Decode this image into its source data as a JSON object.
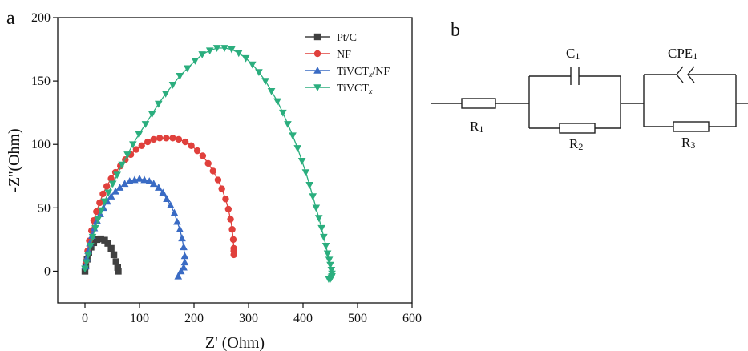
{
  "panels": {
    "a": {
      "label": "a"
    },
    "b": {
      "label": "b"
    }
  },
  "chart_data": {
    "type": "scatter",
    "title": "",
    "xlabel": "Z' (Ohm)",
    "ylabel": "-Z''(Ohm)",
    "xlim": [
      -50,
      600
    ],
    "ylim": [
      -25,
      200
    ],
    "xticks": [
      0,
      100,
      200,
      300,
      400,
      500,
      600
    ],
    "yticks": [
      0,
      50,
      100,
      150,
      200
    ],
    "xtick_labels": [
      "0",
      "100",
      "200",
      "300",
      "400",
      "500",
      "600"
    ],
    "ytick_labels": [
      "0",
      "50",
      "100",
      "150",
      "200"
    ],
    "grid": false,
    "legend_position": "top-right",
    "series": [
      {
        "name": "Pt/C",
        "name_sub": "",
        "name_suffix": "",
        "color": "#404040",
        "marker": "square",
        "x": [
          0.0,
          1.5,
          4.0,
          7.0,
          11.0,
          16.0,
          22.0,
          29.0,
          36.0,
          42.0,
          48.0,
          53.0,
          57.0,
          60.0,
          61.0
        ],
        "y": [
          0.0,
          4.0,
          9.5,
          14.5,
          19.0,
          22.5,
          25.0,
          25.5,
          24.5,
          22.0,
          18.0,
          13.0,
          7.5,
          3.0,
          0.0
        ]
      },
      {
        "name": "NF",
        "name_sub": "",
        "name_suffix": "",
        "color": "#e0403c",
        "marker": "circle",
        "x": [
          2,
          5,
          8,
          12,
          16,
          21,
          27,
          33,
          40,
          48,
          56,
          65,
          74,
          84,
          94,
          104,
          115,
          126,
          137,
          149,
          161,
          172,
          184,
          195,
          206,
          216,
          226,
          235,
          244,
          251,
          258,
          263,
          267,
          270,
          272,
          273,
          273,
          273
        ],
        "y": [
          8,
          16,
          24,
          32,
          40,
          47,
          54,
          61,
          67,
          73,
          78,
          83,
          88,
          92,
          96,
          99,
          102,
          104,
          105,
          105,
          105,
          104,
          102,
          99,
          95,
          91,
          85,
          79,
          72,
          65,
          57,
          49,
          41,
          33,
          25,
          18,
          13,
          16
        ]
      },
      {
        "name": "TiVCT",
        "name_sub": "x",
        "name_suffix": "/NF",
        "color": "#3a6bc4",
        "marker": "triangle-up",
        "x": [
          1,
          3,
          6,
          9,
          13,
          17,
          22,
          28,
          34,
          41,
          48,
          56,
          64,
          73,
          82,
          91,
          100,
          109,
          118,
          126,
          135,
          143,
          150,
          157,
          164,
          169,
          174,
          178,
          181,
          183,
          183,
          181,
          176,
          171
        ],
        "y": [
          4,
          10,
          16,
          22,
          28,
          34,
          40,
          45,
          50,
          55,
          59,
          63,
          66,
          69,
          71,
          72,
          73,
          72,
          71,
          69,
          66,
          62,
          57,
          52,
          46,
          39,
          33,
          26,
          19,
          12,
          7,
          3,
          0,
          -4
        ]
      },
      {
        "name": "TiVCT",
        "name_sub": "x",
        "name_suffix": "",
        "color": "#2bae7e",
        "marker": "triangle-down",
        "x": [
          0,
          3,
          6,
          10,
          14,
          19,
          24,
          30,
          36,
          43,
          51,
          59,
          68,
          78,
          88,
          99,
          111,
          123,
          135,
          148,
          161,
          174,
          188,
          202,
          215,
          229,
          242,
          256,
          269,
          282,
          295,
          307,
          319,
          331,
          342,
          353,
          363,
          372,
          381,
          390,
          398,
          405,
          412,
          418,
          424,
          429,
          434,
          438,
          442,
          445,
          448,
          450,
          452,
          453,
          453,
          452,
          450,
          447
        ],
        "y": [
          2,
          7,
          13,
          20,
          27,
          34,
          41,
          48,
          55,
          62,
          69,
          76,
          84,
          92,
          100,
          108,
          116,
          124,
          132,
          140,
          147,
          154,
          160,
          166,
          171,
          174,
          176,
          176,
          175,
          172,
          168,
          163,
          157,
          150,
          142,
          134,
          125,
          116,
          107,
          97,
          87,
          78,
          68,
          59,
          50,
          42,
          34,
          27,
          20,
          14,
          9,
          5,
          1,
          -2,
          -4,
          -5,
          -6,
          -6
        ]
      }
    ]
  },
  "circuit": {
    "labels": {
      "r1": "R",
      "r1_sub": "1",
      "c1": "C",
      "c1_sub": "1",
      "r2": "R",
      "r2_sub": "2",
      "cpe1": "CPE",
      "cpe1_sub": "1",
      "r3": "R",
      "r3_sub": "3"
    }
  }
}
